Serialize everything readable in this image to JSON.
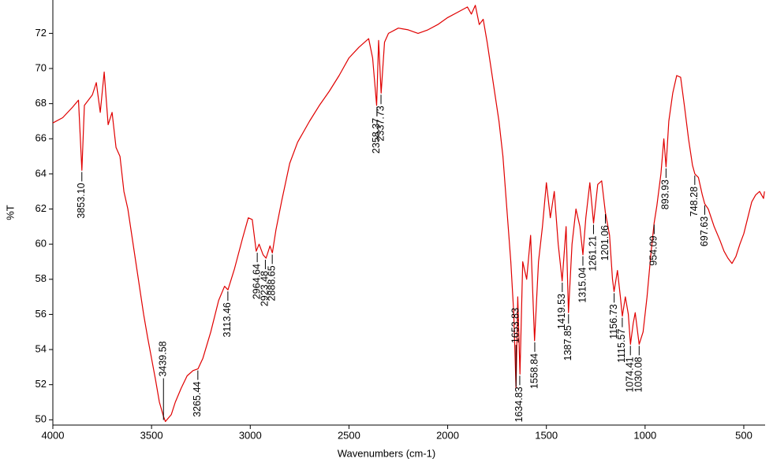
{
  "chart_data": {
    "type": "line",
    "x_label": "Wavenumbers (cm-1)",
    "y_label": "%T",
    "xlim": [
      4000,
      392
    ],
    "ylim": [
      49.7,
      73.9
    ],
    "xticks": [
      4000,
      3500,
      3000,
      2500,
      2000,
      1500,
      1000,
      500
    ],
    "yticks": [
      50,
      52,
      54,
      56,
      58,
      60,
      62,
      64,
      66,
      68,
      70,
      72
    ],
    "grid": false,
    "series": [
      {
        "color": "#e00000",
        "x": [
          4000,
          3950,
          3900,
          3870,
          3853,
          3840,
          3800,
          3780,
          3760,
          3740,
          3720,
          3700,
          3680,
          3660,
          3640,
          3620,
          3600,
          3580,
          3560,
          3540,
          3520,
          3500,
          3480,
          3460,
          3440,
          3430,
          3400,
          3380,
          3350,
          3320,
          3290,
          3265,
          3240,
          3200,
          3160,
          3130,
          3113,
          3080,
          3040,
          3010,
          2990,
          2970,
          2955,
          2935,
          2920,
          2900,
          2888,
          2870,
          2840,
          2800,
          2760,
          2700,
          2650,
          2600,
          2550,
          2500,
          2450,
          2400,
          2380,
          2360,
          2350,
          2337,
          2320,
          2300,
          2250,
          2200,
          2150,
          2100,
          2050,
          2000,
          1950,
          1900,
          1880,
          1860,
          1840,
          1820,
          1800,
          1780,
          1760,
          1740,
          1720,
          1700,
          1680,
          1665,
          1654,
          1645,
          1634,
          1620,
          1600,
          1580,
          1560,
          1540,
          1520,
          1500,
          1480,
          1460,
          1440,
          1420,
          1400,
          1388,
          1370,
          1350,
          1330,
          1315,
          1300,
          1280,
          1261,
          1240,
          1220,
          1201,
          1180,
          1165,
          1157,
          1140,
          1125,
          1115,
          1100,
          1085,
          1074,
          1060,
          1050,
          1040,
          1030,
          1010,
          990,
          970,
          954,
          940,
          920,
          905,
          894,
          880,
          860,
          840,
          820,
          800,
          780,
          760,
          748,
          730,
          710,
          698,
          680,
          650,
          620,
          600,
          580,
          560,
          540,
          520,
          500,
          480,
          460,
          440,
          420,
          400,
          395
        ],
        "values": [
          66.9,
          67.2,
          67.8,
          68.2,
          64.2,
          67.9,
          68.5,
          69.2,
          67.5,
          69.8,
          66.8,
          67.5,
          65.5,
          65,
          63,
          62,
          60.5,
          59,
          57.5,
          56,
          54.7,
          53.5,
          52.3,
          51,
          50.2,
          49.9,
          50.3,
          51,
          51.8,
          52.5,
          52.8,
          52.9,
          53.5,
          55,
          56.8,
          57.6,
          57.4,
          58.6,
          60.3,
          61.5,
          61.4,
          59.6,
          60,
          59.4,
          59.2,
          59.9,
          59.5,
          60.8,
          62.5,
          64.6,
          65.8,
          67,
          67.9,
          68.7,
          69.6,
          70.6,
          71.2,
          71.7,
          70.6,
          67.9,
          71.6,
          68.6,
          71.5,
          72,
          72.3,
          72.2,
          72,
          72.2,
          72.5,
          72.9,
          73.2,
          73.5,
          73.1,
          73.6,
          72.5,
          72.8,
          71.5,
          70,
          68.5,
          67,
          65,
          62,
          59,
          56,
          51.8,
          57,
          52.6,
          59,
          58,
          60.5,
          54.5,
          59,
          61,
          63.5,
          61.5,
          63,
          60,
          57.9,
          61,
          56.1,
          60,
          62,
          61,
          59.4,
          61.5,
          63.5,
          61.2,
          63.4,
          63.6,
          61.8,
          60.5,
          58,
          57.3,
          58.5,
          57,
          55.9,
          57,
          56,
          54.3,
          55.5,
          56.1,
          55.2,
          54.3,
          55,
          57,
          59.5,
          61.2,
          62.2,
          64,
          66,
          64.4,
          67,
          68.6,
          69.6,
          69.5,
          67.8,
          66,
          64.5,
          64,
          63.8,
          62.8,
          62.3,
          62,
          61,
          60.2,
          59.6,
          59.2,
          58.9,
          59.3,
          60,
          60.6,
          61.5,
          62.4,
          62.8,
          63,
          62.6,
          63
        ]
      }
    ],
    "annotations": [
      {
        "x": 3853.1,
        "y": 64.2,
        "label": "3853.10"
      },
      {
        "x": 3439.58,
        "y": 49.9,
        "label": "3439.58"
      },
      {
        "x": 3265.44,
        "y": 52.9,
        "label": "3265.44"
      },
      {
        "x": 3113.46,
        "y": 57.4,
        "label": "3113.46"
      },
      {
        "x": 2964.64,
        "y": 59.6,
        "label": "2964.64"
      },
      {
        "x": 2923.48,
        "y": 59.2,
        "label": "2923.48"
      },
      {
        "x": 2888.65,
        "y": 59.5,
        "label": "2888.65"
      },
      {
        "x": 2358.37,
        "y": 67.9,
        "label": "2358.37"
      },
      {
        "x": 2337.73,
        "y": 68.6,
        "label": "2337.73"
      },
      {
        "x": 1653.83,
        "y": 51.8,
        "label": "1653.83"
      },
      {
        "x": 1634.83,
        "y": 52.6,
        "label": "1634.83"
      },
      {
        "x": 1558.84,
        "y": 54.5,
        "label": "1558.84"
      },
      {
        "x": 1419.53,
        "y": 57.9,
        "label": "1419.53"
      },
      {
        "x": 1387.85,
        "y": 56.1,
        "label": "1387.85"
      },
      {
        "x": 1315.04,
        "y": 59.4,
        "label": "1315.04"
      },
      {
        "x": 1261.21,
        "y": 61.2,
        "label": "1261.21"
      },
      {
        "x": 1201.06,
        "y": 61.8,
        "label": "1201.06"
      },
      {
        "x": 1156.73,
        "y": 57.3,
        "label": "1156.73"
      },
      {
        "x": 1115.57,
        "y": 55.9,
        "label": "1115.57"
      },
      {
        "x": 1074.41,
        "y": 54.3,
        "label": "1074.41"
      },
      {
        "x": 1030.08,
        "y": 54.3,
        "label": "1030.08"
      },
      {
        "x": 954.09,
        "y": 61.2,
        "label": "954.09"
      },
      {
        "x": 893.93,
        "y": 64.4,
        "label": "893.93"
      },
      {
        "x": 748.28,
        "y": 64.0,
        "label": "748.28"
      },
      {
        "x": 697.63,
        "y": 62.3,
        "label": "697.63"
      }
    ]
  }
}
